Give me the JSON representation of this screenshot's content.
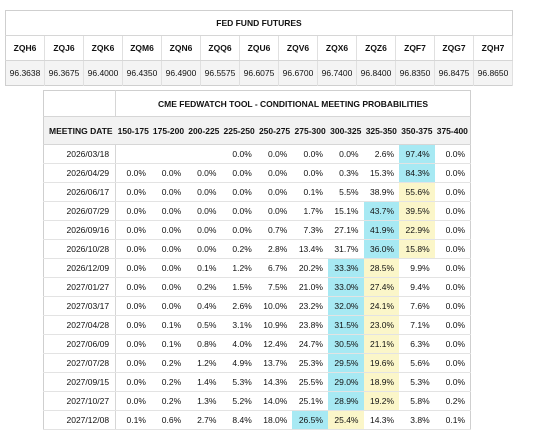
{
  "futures": {
    "title": "FED FUND FUTURES",
    "contracts": [
      {
        "code": "ZQH6",
        "price": "96.3638"
      },
      {
        "code": "ZQJ6",
        "price": "96.3675"
      },
      {
        "code": "ZQK6",
        "price": "96.4000"
      },
      {
        "code": "ZQM6",
        "price": "96.4350"
      },
      {
        "code": "ZQN6",
        "price": "96.4900"
      },
      {
        "code": "ZQQ6",
        "price": "96.5575"
      },
      {
        "code": "ZQU6",
        "price": "96.6075"
      },
      {
        "code": "ZQV6",
        "price": "96.6700"
      },
      {
        "code": "ZQX6",
        "price": "96.7400"
      },
      {
        "code": "ZQZ6",
        "price": "96.8400"
      },
      {
        "code": "ZQF7",
        "price": "96.8350"
      },
      {
        "code": "ZQG7",
        "price": "96.8475"
      },
      {
        "code": "ZQH7",
        "price": "96.8650"
      }
    ]
  },
  "fedwatch": {
    "title": "CME FEDWATCH TOOL - CONDITIONAL MEETING PROBABILITIES",
    "date_header": "MEETING DATE",
    "ranges": [
      "150-175",
      "175-200",
      "200-225",
      "225-250",
      "250-275",
      "275-300",
      "300-325",
      "325-350",
      "350-375",
      "375-400"
    ],
    "highlight_colors": {
      "cyan": "#a7e9f3",
      "yellow": "#fbf6c9"
    },
    "rows": [
      {
        "date": "2026/03/18",
        "cells": [
          "",
          "",
          "",
          "0.0%",
          "0.0%",
          "0.0%",
          "0.0%",
          "2.6%",
          "97.4%",
          "0.0%"
        ],
        "cyan": 8,
        "yellow": -1
      },
      {
        "date": "2026/04/29",
        "cells": [
          "0.0%",
          "0.0%",
          "0.0%",
          "0.0%",
          "0.0%",
          "0.0%",
          "0.3%",
          "15.3%",
          "84.3%",
          "0.0%"
        ],
        "cyan": 8,
        "yellow": -1
      },
      {
        "date": "2026/06/17",
        "cells": [
          "0.0%",
          "0.0%",
          "0.0%",
          "0.0%",
          "0.0%",
          "0.1%",
          "5.5%",
          "38.9%",
          "55.6%",
          "0.0%"
        ],
        "cyan": -1,
        "yellow": 8
      },
      {
        "date": "2026/07/29",
        "cells": [
          "0.0%",
          "0.0%",
          "0.0%",
          "0.0%",
          "0.0%",
          "1.7%",
          "15.1%",
          "43.7%",
          "39.5%",
          "0.0%"
        ],
        "cyan": 7,
        "yellow": 8
      },
      {
        "date": "2026/09/16",
        "cells": [
          "0.0%",
          "0.0%",
          "0.0%",
          "0.0%",
          "0.7%",
          "7.3%",
          "27.1%",
          "41.9%",
          "22.9%",
          "0.0%"
        ],
        "cyan": 7,
        "yellow": 8
      },
      {
        "date": "2026/10/28",
        "cells": [
          "0.0%",
          "0.0%",
          "0.0%",
          "0.2%",
          "2.8%",
          "13.4%",
          "31.7%",
          "36.0%",
          "15.8%",
          "0.0%"
        ],
        "cyan": 7,
        "yellow": 8
      },
      {
        "date": "2026/12/09",
        "cells": [
          "0.0%",
          "0.0%",
          "0.1%",
          "1.2%",
          "6.7%",
          "20.2%",
          "33.3%",
          "28.5%",
          "9.9%",
          "0.0%"
        ],
        "cyan": 6,
        "yellow": 7
      },
      {
        "date": "2027/01/27",
        "cells": [
          "0.0%",
          "0.0%",
          "0.2%",
          "1.5%",
          "7.5%",
          "21.0%",
          "33.0%",
          "27.4%",
          "9.4%",
          "0.0%"
        ],
        "cyan": 6,
        "yellow": 7
      },
      {
        "date": "2027/03/17",
        "cells": [
          "0.0%",
          "0.0%",
          "0.4%",
          "2.6%",
          "10.0%",
          "23.2%",
          "32.0%",
          "24.1%",
          "7.6%",
          "0.0%"
        ],
        "cyan": 6,
        "yellow": 7
      },
      {
        "date": "2027/04/28",
        "cells": [
          "0.0%",
          "0.1%",
          "0.5%",
          "3.1%",
          "10.9%",
          "23.8%",
          "31.5%",
          "23.0%",
          "7.1%",
          "0.0%"
        ],
        "cyan": 6,
        "yellow": 7
      },
      {
        "date": "2027/06/09",
        "cells": [
          "0.0%",
          "0.1%",
          "0.8%",
          "4.0%",
          "12.4%",
          "24.7%",
          "30.5%",
          "21.1%",
          "6.3%",
          "0.0%"
        ],
        "cyan": 6,
        "yellow": 7
      },
      {
        "date": "2027/07/28",
        "cells": [
          "0.0%",
          "0.2%",
          "1.2%",
          "4.9%",
          "13.7%",
          "25.3%",
          "29.5%",
          "19.6%",
          "5.6%",
          "0.0%"
        ],
        "cyan": 6,
        "yellow": 7
      },
      {
        "date": "2027/09/15",
        "cells": [
          "0.0%",
          "0.2%",
          "1.4%",
          "5.3%",
          "14.3%",
          "25.5%",
          "29.0%",
          "18.9%",
          "5.3%",
          "0.0%"
        ],
        "cyan": 6,
        "yellow": 7
      },
      {
        "date": "2027/10/27",
        "cells": [
          "0.0%",
          "0.2%",
          "1.3%",
          "5.2%",
          "14.0%",
          "25.1%",
          "28.9%",
          "19.2%",
          "5.8%",
          "0.2%"
        ],
        "cyan": 6,
        "yellow": 7
      },
      {
        "date": "2027/12/08",
        "cells": [
          "0.1%",
          "0.6%",
          "2.7%",
          "8.4%",
          "18.0%",
          "26.5%",
          "25.4%",
          "14.3%",
          "3.8%",
          "0.1%"
        ],
        "cyan": 5,
        "yellow": 6
      }
    ]
  }
}
